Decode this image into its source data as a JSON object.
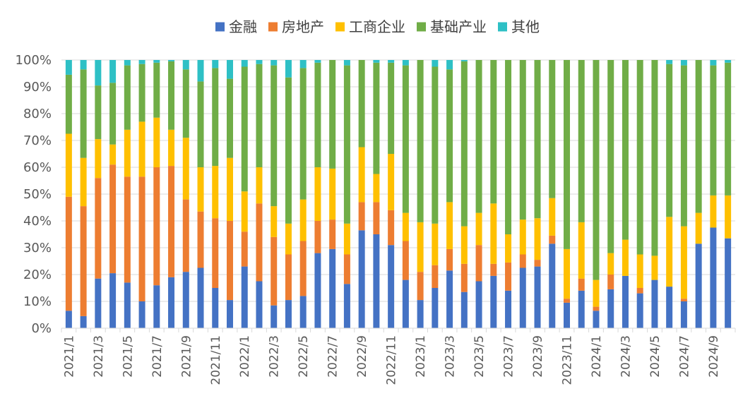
{
  "chart_data": {
    "type": "bar",
    "stacked": true,
    "percent_stacked": true,
    "title": "",
    "xlabel": "",
    "ylabel": "",
    "ylim": [
      0,
      100
    ],
    "y_ticks": [
      0,
      10,
      20,
      30,
      40,
      50,
      60,
      70,
      80,
      90,
      100
    ],
    "y_tick_labels": [
      "0%",
      "10%",
      "20%",
      "30%",
      "40%",
      "50%",
      "60%",
      "70%",
      "80%",
      "90%",
      "100%"
    ],
    "grid": true,
    "legend_position": "top-center",
    "categories": [
      "2021/1",
      "2021/2",
      "2021/3",
      "2021/4",
      "2021/5",
      "2021/6",
      "2021/7",
      "2021/8",
      "2021/9",
      "2021/10",
      "2021/11",
      "2021/12",
      "2022/1",
      "2022/2",
      "2022/3",
      "2022/4",
      "2022/5",
      "2022/6",
      "2022/7",
      "2022/8",
      "2022/9",
      "2022/10",
      "2022/11",
      "2022/12",
      "2023/1",
      "2023/2",
      "2023/3",
      "2023/4",
      "2023/5",
      "2023/6",
      "2023/7",
      "2023/8",
      "2023/9",
      "2023/10",
      "2023/11",
      "2023/12",
      "2024/1",
      "2024/2",
      "2024/3",
      "2024/4",
      "2024/5",
      "2024/6",
      "2024/7",
      "2024/8",
      "2024/9",
      "2024/10"
    ],
    "x_tick_labels": [
      "2021/1",
      "",
      "2021/3",
      "",
      "2021/5",
      "",
      "2021/7",
      "",
      "2021/9",
      "",
      "2021/11",
      "",
      "2022/1",
      "",
      "2022/3",
      "",
      "2022/5",
      "",
      "2022/7",
      "",
      "2022/9",
      "",
      "2022/11",
      "",
      "2023/1",
      "",
      "2023/3",
      "",
      "2023/5",
      "",
      "2023/7",
      "",
      "2023/9",
      "",
      "2023/11",
      "",
      "2024/1",
      "",
      "2024/3",
      "",
      "2024/5",
      "",
      "2024/7",
      "",
      "2024/9",
      ""
    ],
    "series": [
      {
        "name": "金融",
        "color": "#4472C4",
        "values": [
          6.5,
          4.5,
          18.5,
          20.5,
          17,
          10,
          16,
          19,
          21,
          22.5,
          15,
          10.5,
          23,
          17.5,
          8.5,
          10.5,
          12,
          28,
          29.5,
          16.5,
          36.5,
          35,
          31,
          18,
          10.5,
          15,
          21.5,
          13.5,
          17.5,
          19.5,
          14,
          22.5,
          23,
          31.5,
          9.5,
          14,
          6.5,
          14.5,
          19.5,
          13,
          18,
          15.5,
          10,
          31.5,
          37.5,
          33.5
        ]
      },
      {
        "name": "房地产",
        "color": "#ED7D31",
        "values": [
          42.5,
          41,
          37.5,
          40.5,
          39.5,
          46.5,
          44,
          41.5,
          27,
          21,
          26,
          29.5,
          13,
          29,
          25.5,
          17,
          20.5,
          12,
          11,
          11,
          10.5,
          12,
          13,
          14.5,
          10.5,
          8.5,
          8,
          10.5,
          13.5,
          4.5,
          10.5,
          5,
          2.5,
          3,
          1.5,
          4.5,
          1.5,
          5.5,
          0,
          2,
          0,
          0,
          1,
          0,
          0,
          0
        ]
      },
      {
        "name": "工商企业",
        "color": "#FFC000",
        "values": [
          23.5,
          18,
          14.5,
          7.5,
          17.5,
          20.5,
          18.5,
          13.5,
          23,
          16.5,
          19.5,
          23.5,
          15,
          13.5,
          11.5,
          11.5,
          15.5,
          20,
          19,
          11.5,
          20.5,
          10.5,
          21,
          10.5,
          18.5,
          15.5,
          17.5,
          14,
          12,
          22.5,
          10.5,
          13,
          15.5,
          14,
          18.5,
          21,
          10,
          8,
          13.5,
          12.5,
          9,
          26,
          27,
          11.5,
          12,
          16
        ]
      },
      {
        "name": "基础产业",
        "color": "#70AD47",
        "values": [
          22,
          33,
          20,
          23,
          24,
          21.5,
          20.5,
          25.5,
          25.5,
          32,
          36.5,
          29.5,
          46.5,
          38.5,
          52.5,
          54.5,
          49,
          39,
          40.5,
          59,
          32.5,
          41.5,
          34,
          55,
          60.5,
          58.5,
          49.5,
          61.5,
          57,
          53.5,
          65,
          59.5,
          59,
          51.5,
          70.5,
          60.5,
          82,
          72,
          67,
          72.5,
          73,
          57,
          60,
          57,
          48.5,
          49.5
        ]
      },
      {
        "name": "其他",
        "color": "#2EC0C5",
        "values": [
          5.5,
          3.5,
          9.5,
          8.5,
          2,
          1.5,
          1,
          0.5,
          3.5,
          8,
          3,
          7,
          2.5,
          1.5,
          2,
          6.5,
          3,
          1,
          0,
          2,
          0,
          1,
          1,
          2,
          0,
          2.5,
          3.5,
          0.5,
          0,
          0,
          0,
          0,
          0,
          0,
          0,
          0,
          0,
          0,
          0,
          0,
          0,
          1.5,
          2,
          0,
          2,
          1
        ]
      }
    ]
  }
}
